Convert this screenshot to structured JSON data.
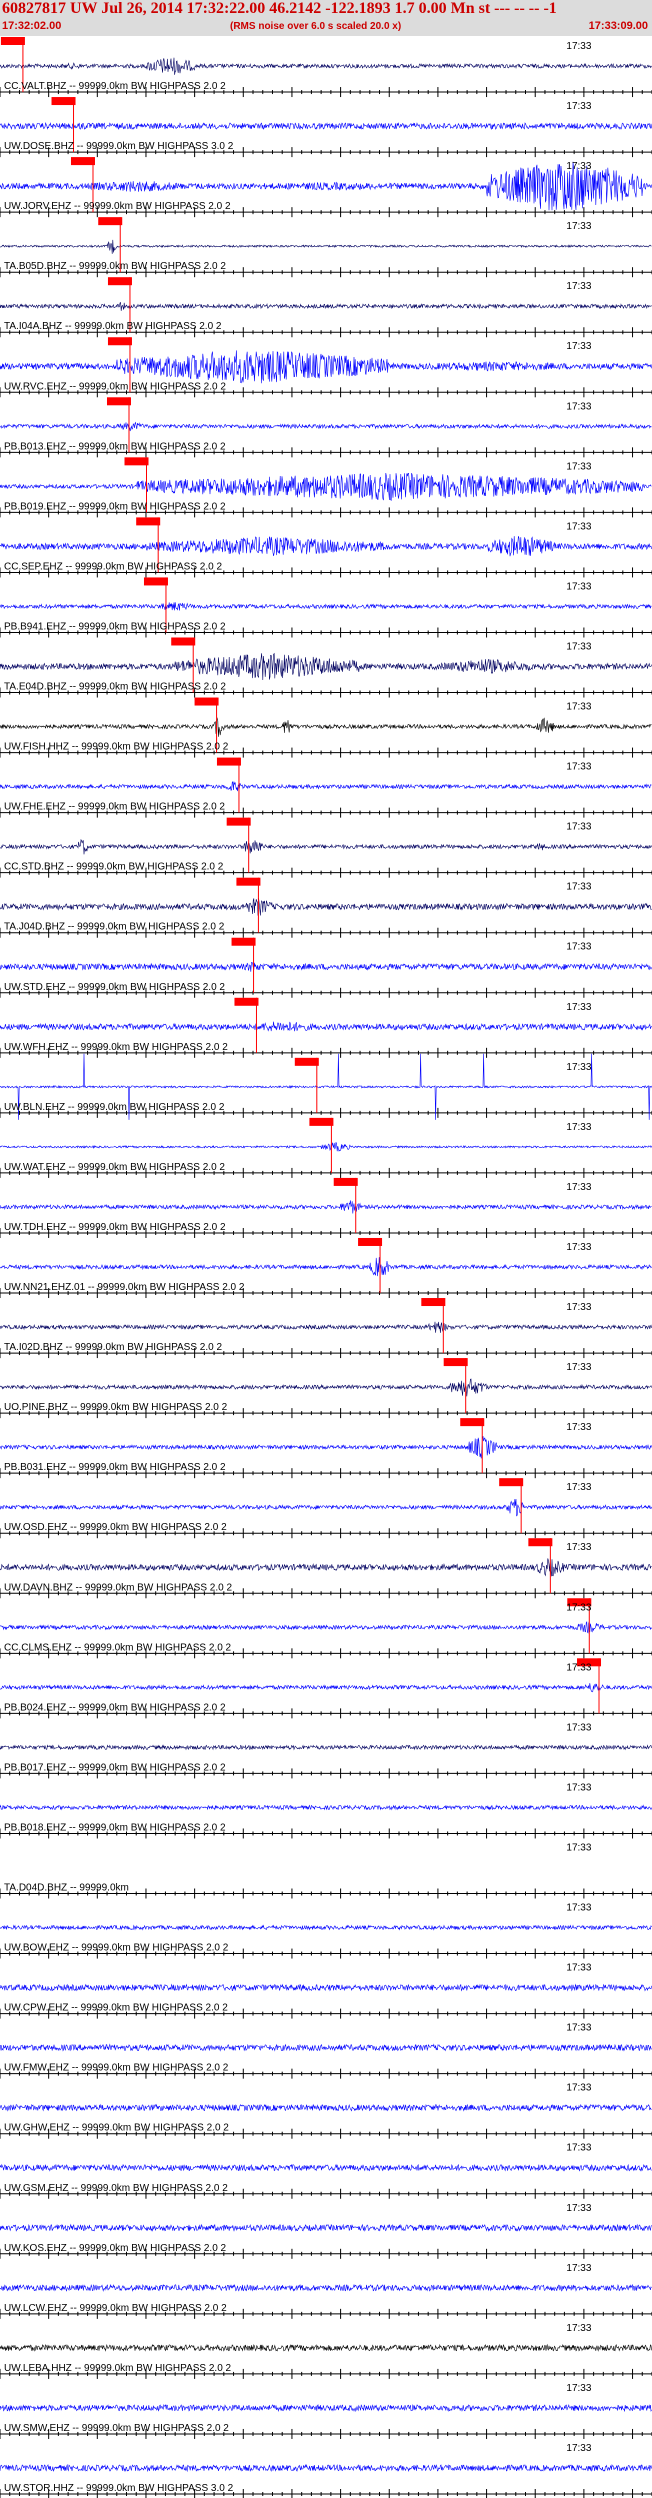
{
  "header": {
    "title": "60827817 UW Jul 26, 2014 17:32:22.00   46.2142 -122.1893  1.7 0.00 Mn st --- -- -- -1",
    "time_start": "17:32:02.00",
    "note": "(RMS noise over 6.0 s scaled 20.0 x)",
    "time_end": "17:33:09.00"
  },
  "chart_data": {
    "type": "line",
    "x_unit": "s after 17:32:02.00",
    "xlim": [
      0,
      67
    ],
    "tick_label": "17:33",
    "tick_label_at": 58,
    "traces": [
      {
        "label": "CC.VALT.BHZ -- 99999.0km BW  HIGHPASS  2.0  2",
        "color": "#000060",
        "pick": 0.3,
        "bursts": [
          [
            15,
            20,
            10
          ],
          [
            5,
            10,
            3
          ]
        ],
        "noise": 2,
        "spike": false
      },
      {
        "label": "UW.DOSE.BHZ -- 99999.0km BW  HIGHPASS  3.0  2",
        "color": "#0000ff",
        "pick": 5.5,
        "bursts": [
          [
            7,
            10,
            4
          ],
          [
            10,
            14,
            2
          ]
        ],
        "noise": 3,
        "spike": false
      },
      {
        "label": "UW.JORV.EHZ -- 99999.0km BW  HIGHPASS  2.0  2",
        "color": "#0000ff",
        "pick": 7.5,
        "bursts": [
          [
            50,
            66,
            28
          ],
          [
            8,
            20,
            6
          ],
          [
            20,
            48,
            4
          ]
        ],
        "noise": 3,
        "spike": false
      },
      {
        "label": "TA.B05D.BHZ -- 99999.0km BW  HIGHPASS  2.0  2",
        "color": "#000060",
        "pick": 10.3,
        "bursts": [
          [
            11,
            12,
            8
          ]
        ],
        "noise": 1,
        "spike": false
      },
      {
        "label": "TA.I04A.BHZ -- 99999.0km BW  HIGHPASS  2.0  2",
        "color": "#000060",
        "pick": 11.3,
        "bursts": [
          [
            12,
            13,
            5
          ]
        ],
        "noise": 2,
        "spike": false
      },
      {
        "label": "UW.RVC.EHZ -- 99999.0km BW  HIGHPASS  2.0  2",
        "color": "#0000ff",
        "pick": 11.3,
        "bursts": [
          [
            12,
            40,
            18
          ],
          [
            40,
            62,
            5
          ]
        ],
        "noise": 3,
        "spike": false
      },
      {
        "label": "PB.B013.EHZ -- 99999.0km BW  HIGHPASS  2.0  2",
        "color": "#0000ff",
        "pick": 11.2,
        "bursts": [
          [
            12,
            15,
            5
          ]
        ],
        "noise": 2,
        "spike": false
      },
      {
        "label": "PB.B019.EHZ -- 99999.0km BW  HIGHPASS  2.0  2",
        "color": "#0000ff",
        "pick": 13.0,
        "bursts": [
          [
            14,
            66,
            14
          ]
        ],
        "noise": 2,
        "spike": false
      },
      {
        "label": "CC.SEP.EHZ -- 99999.0km BW  HIGHPASS  2.0  2",
        "color": "#0000ff",
        "pick": 14.2,
        "bursts": [
          [
            15,
            40,
            10
          ],
          [
            50,
            57,
            12
          ]
        ],
        "noise": 3,
        "spike": false
      },
      {
        "label": "PB.B941.EHZ -- 99999.0km BW  HIGHPASS  2.0  2",
        "color": "#0000ff",
        "pick": 15.0,
        "bursts": [
          [
            16,
            20,
            5
          ]
        ],
        "noise": 2,
        "spike": false
      },
      {
        "label": "TA.E04D.BHZ -- 99999.0km BW  HIGHPASS  2.0  2",
        "color": "#000060",
        "pick": 17.8,
        "bursts": [
          [
            18,
            37,
            14
          ],
          [
            45,
            55,
            8
          ]
        ],
        "noise": 3,
        "spike": false
      },
      {
        "label": "UW.FISH.HHZ -- 99999.0km BW  HIGHPASS  2.0  2",
        "color": "#000000",
        "pick": 20.2,
        "bursts": [
          [
            22,
            23,
            12
          ],
          [
            29,
            30,
            10
          ],
          [
            55,
            57,
            9
          ]
        ],
        "noise": 2,
        "spike": false
      },
      {
        "label": "UW.FHE.EHZ -- 99999.0km BW  HIGHPASS  2.0  2",
        "color": "#0000ff",
        "pick": 22.5,
        "bursts": [
          [
            23,
            25,
            6
          ]
        ],
        "noise": 2,
        "spike": false
      },
      {
        "label": "CC.STD.BHZ -- 99999.0km BW  HIGHPASS  2.0  2",
        "color": "#000060",
        "pick": 23.5,
        "bursts": [
          [
            8,
            9,
            10
          ],
          [
            25,
            27,
            10
          ],
          [
            55,
            56,
            5
          ]
        ],
        "noise": 2,
        "spike": false
      },
      {
        "label": "TA.J04D.BHZ -- 99999.0km BW  HIGHPASS  2.0  2",
        "color": "#000060",
        "pick": 24.5,
        "bursts": [
          [
            25,
            28,
            10
          ]
        ],
        "noise": 3,
        "spike": false
      },
      {
        "label": "UW.STD.EHZ -- 99999.0km BW  HIGHPASS  2.0  2",
        "color": "#0000ff",
        "pick": 24.0,
        "bursts": [
          [
            25,
            27,
            6
          ]
        ],
        "noise": 3,
        "spike": false
      },
      {
        "label": "UW.WFH.EHZ -- 99999.0km BW  HIGHPASS  2.0  2",
        "color": "#0000ff",
        "pick": 24.3,
        "bursts": [
          [
            25,
            33,
            6
          ]
        ],
        "noise": 3,
        "spike": false
      },
      {
        "label": "UW.BLN.EHZ -- 99999.0km BW  HIGHPASS  2.0  2",
        "color": "#0000ff",
        "pick": 30.5,
        "bursts": [],
        "noise": 1,
        "spike": true
      },
      {
        "label": "UW.WAT.EHZ -- 99999.0km BW  HIGHPASS  2.0  2",
        "color": "#0000ff",
        "pick": 32.0,
        "bursts": [
          [
            33,
            36,
            5
          ]
        ],
        "noise": 1,
        "spike": false
      },
      {
        "label": "UW.TDH.EHZ -- 99999.0km BW  HIGHPASS  2.0  2",
        "color": "#0000ff",
        "pick": 34.5,
        "bursts": [
          [
            35,
            37,
            8
          ]
        ],
        "noise": 2,
        "spike": false
      },
      {
        "label": "UW.NN21.EHZ.01 -- 99999.0km BW  HIGHPASS  2.0  2",
        "color": "#0000ff",
        "pick": 37.0,
        "bursts": [
          [
            38,
            40,
            12
          ]
        ],
        "noise": 2,
        "spike": false
      },
      {
        "label": "TA.I02D.BHZ -- 99999.0km BW  HIGHPASS  2.0  2",
        "color": "#000060",
        "pick": 43.5,
        "bursts": [
          [
            44,
            46,
            7
          ]
        ],
        "noise": 2,
        "spike": false
      },
      {
        "label": "UO.PINE.BHZ -- 99999.0km BW  HIGHPASS  2.0  2",
        "color": "#000060",
        "pick": 45.8,
        "bursts": [
          [
            46,
            50,
            10
          ]
        ],
        "noise": 2,
        "spike": false
      },
      {
        "label": "PB.B031.EHZ -- 99999.0km BW  HIGHPASS  2.0  2",
        "color": "#0000ff",
        "pick": 47.5,
        "bursts": [
          [
            48,
            51,
            12
          ]
        ],
        "noise": 2,
        "spike": false
      },
      {
        "label": "UW.OSD.EHZ -- 99999.0km BW  HIGHPASS  2.0  2",
        "color": "#0000ff",
        "pick": 51.5,
        "bursts": [
          [
            52,
            54,
            10
          ]
        ],
        "noise": 2,
        "spike": false
      },
      {
        "label": "UW.DAVN.BHZ -- 99999.0km BW  HIGHPASS  2.0  2",
        "color": "#000060",
        "pick": 54.5,
        "bursts": [
          [
            55,
            58,
            10
          ]
        ],
        "noise": 3,
        "spike": false
      },
      {
        "label": "CC.CLMS.EHZ -- 99999.0km BW  HIGHPASS  2.0  2",
        "color": "#0000ff",
        "pick": 58.5,
        "bursts": [
          [
            59,
            62,
            6
          ]
        ],
        "noise": 2,
        "spike": false
      },
      {
        "label": "PB.B024.EHZ -- 99999.0km BW  HIGHPASS  2.0  2",
        "color": "#0000ff",
        "pick": 59.5,
        "bursts": [
          [
            60,
            62,
            6
          ]
        ],
        "noise": 2,
        "spike": false
      },
      {
        "label": "PB.B017.EHZ -- 99999.0km BW  HIGHPASS  2.0  2",
        "color": "#000060",
        "pick": null,
        "bursts": [],
        "noise": 2,
        "spike": false
      },
      {
        "label": "PB.B018.EHZ -- 99999.0km BW  HIGHPASS  2.0  2",
        "color": "#0000ff",
        "pick": null,
        "bursts": [],
        "noise": 2,
        "spike": false
      },
      {
        "label": "TA.D04D.BHZ -- 99999.0km",
        "color": "#000060",
        "pick": null,
        "bursts": [],
        "noise": 0,
        "spike": false
      },
      {
        "label": "UW.BOW.EHZ -- 99999.0km BW  HIGHPASS  2.0  2",
        "color": "#0000ff",
        "pick": null,
        "bursts": [],
        "noise": 2,
        "spike": false
      },
      {
        "label": "UW.CPW.EHZ -- 99999.0km BW  HIGHPASS  2.0  2",
        "color": "#0000ff",
        "pick": null,
        "bursts": [],
        "noise": 3,
        "spike": false
      },
      {
        "label": "UW.FMW.EHZ -- 99999.0km BW  HIGHPASS  2.0  2",
        "color": "#0000ff",
        "pick": null,
        "bursts": [],
        "noise": 3,
        "spike": false
      },
      {
        "label": "UW.GHW.EHZ -- 99999.0km BW  HIGHPASS  2.0  2",
        "color": "#0000ff",
        "pick": null,
        "bursts": [],
        "noise": 3,
        "spike": false
      },
      {
        "label": "UW.GSM.EHZ -- 99999.0km BW  HIGHPASS  2.0  2",
        "color": "#0000ff",
        "pick": null,
        "bursts": [],
        "noise": 3,
        "spike": false
      },
      {
        "label": "UW.KOS.EHZ -- 99999.0km BW  HIGHPASS  2.0  2",
        "color": "#0000ff",
        "pick": null,
        "bursts": [],
        "noise": 3,
        "spike": false
      },
      {
        "label": "UW.LCW.EHZ -- 99999.0km BW  HIGHPASS  2.0  2",
        "color": "#0000ff",
        "pick": null,
        "bursts": [],
        "noise": 3,
        "spike": false
      },
      {
        "label": "UW.LEBA.HHZ -- 99999.0km BW  HIGHPASS  2.0  2",
        "color": "#000000",
        "pick": null,
        "bursts": [],
        "noise": 3,
        "spike": false
      },
      {
        "label": "UW.SMW.EHZ -- 99999.0km BW  HIGHPASS  2.0  2",
        "color": "#0000ff",
        "pick": null,
        "bursts": [],
        "noise": 3,
        "spike": false
      },
      {
        "label": "UW.STOR.HHZ -- 99999.0km BW  HIGHPASS  3.0  2",
        "color": "#0000ff",
        "pick": null,
        "bursts": [],
        "noise": 3,
        "spike": false
      }
    ]
  }
}
